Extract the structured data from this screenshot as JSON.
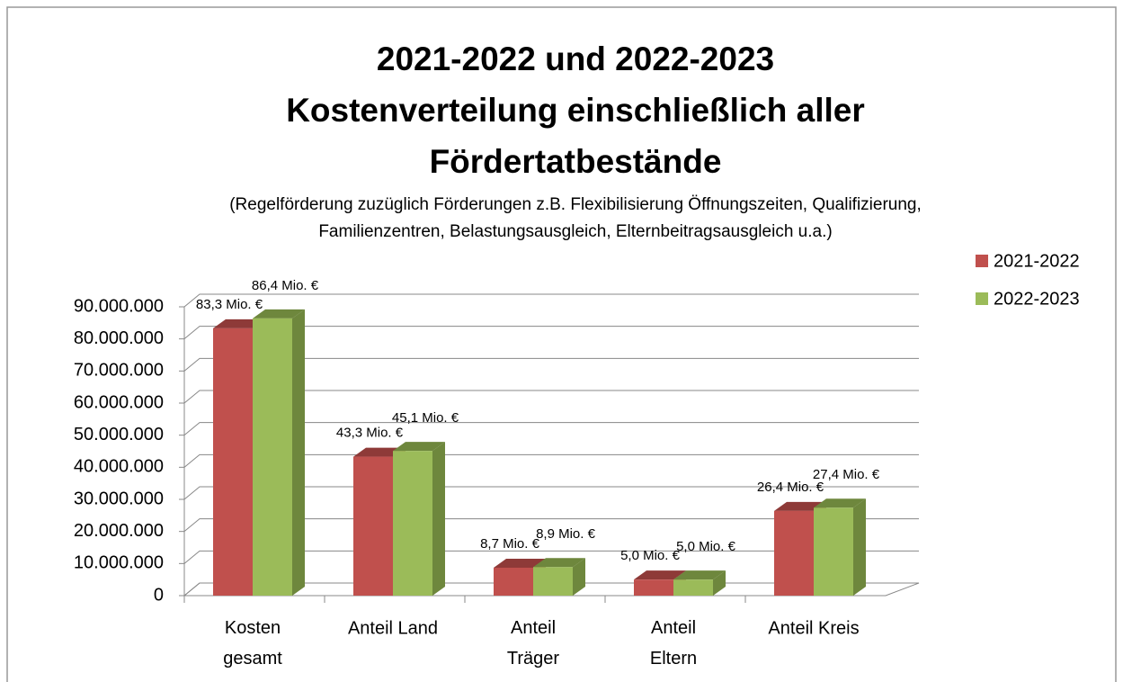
{
  "chart_data": {
    "type": "bar3d",
    "title": [
      "2021-2022 und 2022-2023",
      "Kostenverteilung einschließlich aller",
      "Fördertatbestände"
    ],
    "subtitle": [
      "(Regelförderung zuzüglich Förderungen z.B. Flexibilisierung Öffnungszeiten, Qualifizierung,",
      "Familienzentren, Belastungsausgleich, Elternbeitragsausgleich u.a.)"
    ],
    "categories": [
      "Kosten gesamt",
      "Anteil Land",
      "Anteil Träger",
      "Anteil Eltern",
      "Anteil Kreis"
    ],
    "series": [
      {
        "name": "2021-2022",
        "color": "#c0504d",
        "side": "#8e3a38",
        "values": [
          83300000,
          43300000,
          8700000,
          5000000,
          26400000
        ],
        "value_labels": [
          "83,3 Mio. €",
          "43,3 Mio. €",
          "8,7 Mio. €",
          "5,0 Mio. €",
          "26,4 Mio. €"
        ]
      },
      {
        "name": "2022-2023",
        "color": "#9bbb59",
        "side": "#6e873d",
        "values": [
          86400000,
          45100000,
          8900000,
          5000000,
          27400000
        ],
        "value_labels": [
          "86,4 Mio. €",
          "45,1 Mio. €",
          "8,9 Mio. €",
          "5,0 Mio. €",
          "27,4 Mio. €"
        ]
      }
    ],
    "ylim": [
      0,
      90000000
    ],
    "yticks": [
      {
        "value": 0,
        "label": "0"
      },
      {
        "value": 10000000,
        "label": "10.000.000"
      },
      {
        "value": 20000000,
        "label": "20.000.000"
      },
      {
        "value": 30000000,
        "label": "30.000.000"
      },
      {
        "value": 40000000,
        "label": "40.000.000"
      },
      {
        "value": 50000000,
        "label": "50.000.000"
      },
      {
        "value": 60000000,
        "label": "60.000.000"
      },
      {
        "value": 70000000,
        "label": "70.000.000"
      },
      {
        "value": 80000000,
        "label": "80.000.000"
      },
      {
        "value": 90000000,
        "label": "90.000.000"
      }
    ],
    "grid": true,
    "legend": "right"
  }
}
